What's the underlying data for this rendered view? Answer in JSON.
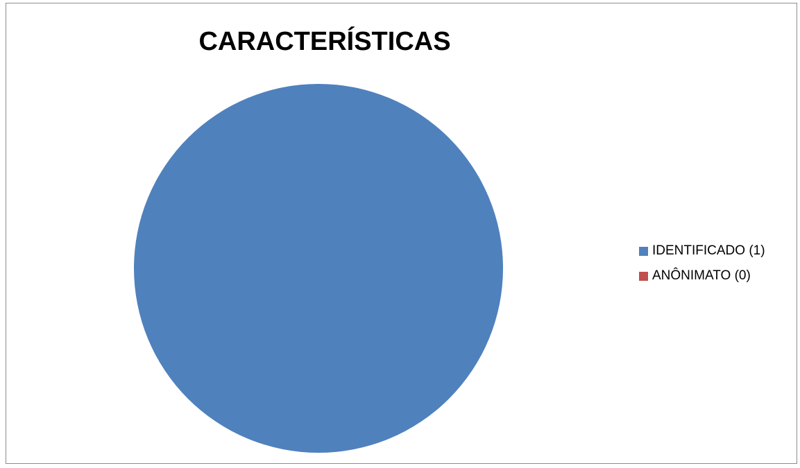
{
  "chart_data": {
    "type": "pie",
    "title": "CARACTERÍSTICAS",
    "categories": [
      "IDENTIFICADO",
      "ANÔNIMATO"
    ],
    "values": [
      1,
      0
    ],
    "colors": [
      "#4f81bd",
      "#c0504d"
    ],
    "legend": {
      "placement": "right",
      "entries": [
        "IDENTIFICADO (1)",
        "ANÔNIMATO (0)"
      ]
    }
  }
}
